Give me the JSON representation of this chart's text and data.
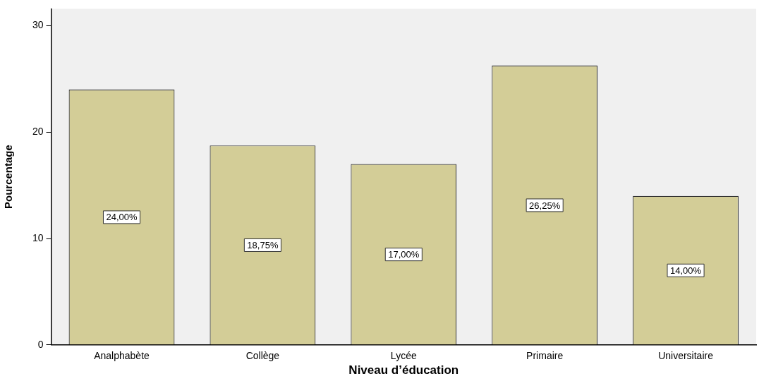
{
  "chart_data": {
    "type": "bar",
    "xlabel": "Niveau d’éducation",
    "ylabel": "Pourcentage",
    "categories": [
      "Analphabète",
      "Collège",
      "Lycée",
      "Primaire",
      "Universitaire"
    ],
    "values": [
      24,
      18.75,
      17,
      26.25,
      14
    ],
    "value_labels": [
      "24,00%",
      "18,75%",
      "17,00%",
      "26,25%",
      "14,00%"
    ],
    "color": "#d3cd97",
    "ylim": [
      0,
      31.6
    ],
    "yticks": [
      0,
      10,
      20,
      30
    ],
    "grid": false,
    "legend": false
  }
}
